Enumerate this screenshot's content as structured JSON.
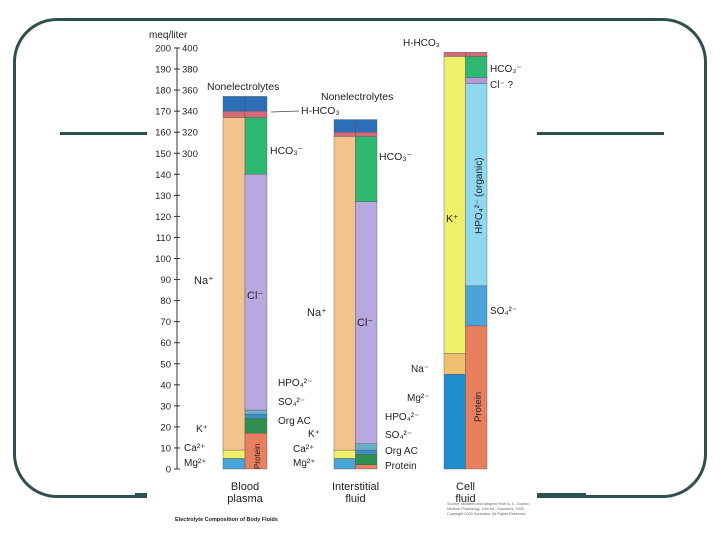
{
  "slide": {
    "frame_color": "#2f4f4f"
  },
  "chart_data": {
    "type": "bar",
    "stacked": true,
    "title": "Electrolyte Composition of Body Fluids",
    "ylabel": "meq/liter",
    "y_ticks": [
      0,
      10,
      20,
      30,
      40,
      50,
      60,
      70,
      80,
      90,
      100,
      110,
      120,
      130,
      140,
      150,
      160,
      170,
      180,
      190,
      200
    ],
    "y_ticks_secondary": [
      "300",
      "320",
      "340",
      "360",
      "380",
      "400"
    ],
    "ylim": [
      0,
      200
    ],
    "categories": [
      "Blood plasma",
      "Interstitial fluid",
      "Cell fluid"
    ],
    "category_lines": [
      [
        "Blood",
        "plasma"
      ],
      [
        "Interstitial",
        "fluid"
      ],
      [
        "Cell",
        "fluid"
      ]
    ],
    "colors": {
      "sodium": "#f2c48c",
      "chloride": "#b7a9e0",
      "bicarbonate": "#2eb872",
      "protein": "#e8805f",
      "potassium": "#eef06a",
      "hpo4_organic": "#8fd8f0",
      "calcium": "#4aa3d9",
      "magnesium": "#2a7fc8",
      "nonelectrolytes": "#2b6fb9",
      "h_hco3": "#d66a7a",
      "sulfate": "#3c8ec9",
      "org_ac": "#2f8f4f",
      "phosphate": "#6bb0c9",
      "sodium_cell": "#efc070",
      "magnesium_cell": "#1f8dce",
      "chloride_cell": "#b39cd6"
    },
    "bars": [
      {
        "category": "Blood plasma",
        "cations": [
          {
            "name": "Ca2+/Mg2+",
            "from": 0,
            "to": 5,
            "color": "calcium"
          },
          {
            "name": "K+",
            "from": 5,
            "to": 9,
            "color": "potassium"
          },
          {
            "name": "Na+",
            "from": 9,
            "to": 167,
            "color": "sodium"
          },
          {
            "name": "H-HCO3",
            "from": 167,
            "to": 170,
            "color": "h_hco3"
          },
          {
            "name": "Nonelectrolytes",
            "from": 170,
            "to": 177,
            "color": "nonelectrolytes"
          }
        ],
        "anions": [
          {
            "name": "Protein",
            "from": 0,
            "to": 17,
            "color": "protein"
          },
          {
            "name": "Org AC",
            "from": 17,
            "to": 24,
            "color": "org_ac"
          },
          {
            "name": "SO4",
            "from": 24,
            "to": 26,
            "color": "sulfate"
          },
          {
            "name": "HPO4",
            "from": 26,
            "to": 28,
            "color": "phosphate"
          },
          {
            "name": "Cl-",
            "from": 28,
            "to": 140,
            "color": "chloride"
          },
          {
            "name": "HCO3-",
            "from": 140,
            "to": 167,
            "color": "bicarbonate"
          },
          {
            "name": "H-HCO3",
            "from": 167,
            "to": 170,
            "color": "h_hco3"
          },
          {
            "name": "Nonelectrolytes",
            "from": 170,
            "to": 177,
            "color": "nonelectrolytes"
          }
        ]
      },
      {
        "category": "Interstitial fluid",
        "cations": [
          {
            "name": "Ca2+/Mg2+",
            "from": 0,
            "to": 5,
            "color": "calcium"
          },
          {
            "name": "K+",
            "from": 5,
            "to": 9,
            "color": "potassium"
          },
          {
            "name": "Na+",
            "from": 9,
            "to": 158,
            "color": "sodium"
          },
          {
            "name": "H-HCO3",
            "from": 158,
            "to": 160,
            "color": "h_hco3"
          },
          {
            "name": "Nonelectrolytes",
            "from": 160,
            "to": 166,
            "color": "nonelectrolytes"
          }
        ],
        "anions": [
          {
            "name": "Protein",
            "from": 0,
            "to": 2,
            "color": "protein"
          },
          {
            "name": "Org AC",
            "from": 2,
            "to": 7,
            "color": "org_ac"
          },
          {
            "name": "SO4",
            "from": 7,
            "to": 9,
            "color": "sulfate"
          },
          {
            "name": "HPO4",
            "from": 9,
            "to": 12,
            "color": "phosphate"
          },
          {
            "name": "Cl-",
            "from": 12,
            "to": 127,
            "color": "chloride"
          },
          {
            "name": "HCO3-",
            "from": 127,
            "to": 158,
            "color": "bicarbonate"
          },
          {
            "name": "H-HCO3",
            "from": 158,
            "to": 160,
            "color": "h_hco3"
          },
          {
            "name": "Nonelectrolytes",
            "from": 160,
            "to": 166,
            "color": "nonelectrolytes"
          }
        ]
      },
      {
        "category": "Cell fluid",
        "cations": [
          {
            "name": "Mg2+",
            "from": 0,
            "to": 45,
            "color": "magnesium_cell"
          },
          {
            "name": "Na+",
            "from": 45,
            "to": 55,
            "color": "sodium_cell"
          },
          {
            "name": "K+",
            "from": 55,
            "to": 196,
            "color": "potassium"
          },
          {
            "name": "H-HCO3",
            "from": 196,
            "to": 198,
            "color": "h_hco3"
          }
        ],
        "anions": [
          {
            "name": "Protein",
            "from": 0,
            "to": 68,
            "color": "protein"
          },
          {
            "name": "SO4 2-",
            "from": 68,
            "to": 87,
            "color": "calcium"
          },
          {
            "name": "HPO4 2- (organic)",
            "from": 87,
            "to": 183,
            "color": "hpo4_organic"
          },
          {
            "name": "Cl- ?",
            "from": 183,
            "to": 186,
            "color": "chloride_cell"
          },
          {
            "name": "HCO3-",
            "from": 186,
            "to": 196,
            "color": "bicarbonate"
          },
          {
            "name": "H-HCO3",
            "from": 196,
            "to": 198,
            "color": "h_hco3"
          }
        ]
      }
    ],
    "label_text": {
      "na": "Na⁺",
      "cl": "Cl⁻",
      "k": "K⁺",
      "ca": "Ca²⁺",
      "mg": "Mg²⁺",
      "hco3": "HCO₃⁻",
      "hhco3": "H-HCO₃",
      "nonel": "Nonelectrolytes",
      "hpo4": "HPO₄²⁻",
      "so4": "SO₄²⁻",
      "orgac": "Org AC",
      "protein": "Protein",
      "hpo4org": "HPO₄²⁻ (organic)",
      "clq": "Cl⁻ ?",
      "na_cell": "Na⁻",
      "mg_cell": "Mg²⁻",
      "so4_cell": "SO₄²⁻"
    },
    "source_note": "Source: Modified and adapted from A. C. Guyton, Medical Physiology, 10th ed., Saunders, 2000. Copyright 2000 Saunders. All Rights Reserved."
  }
}
